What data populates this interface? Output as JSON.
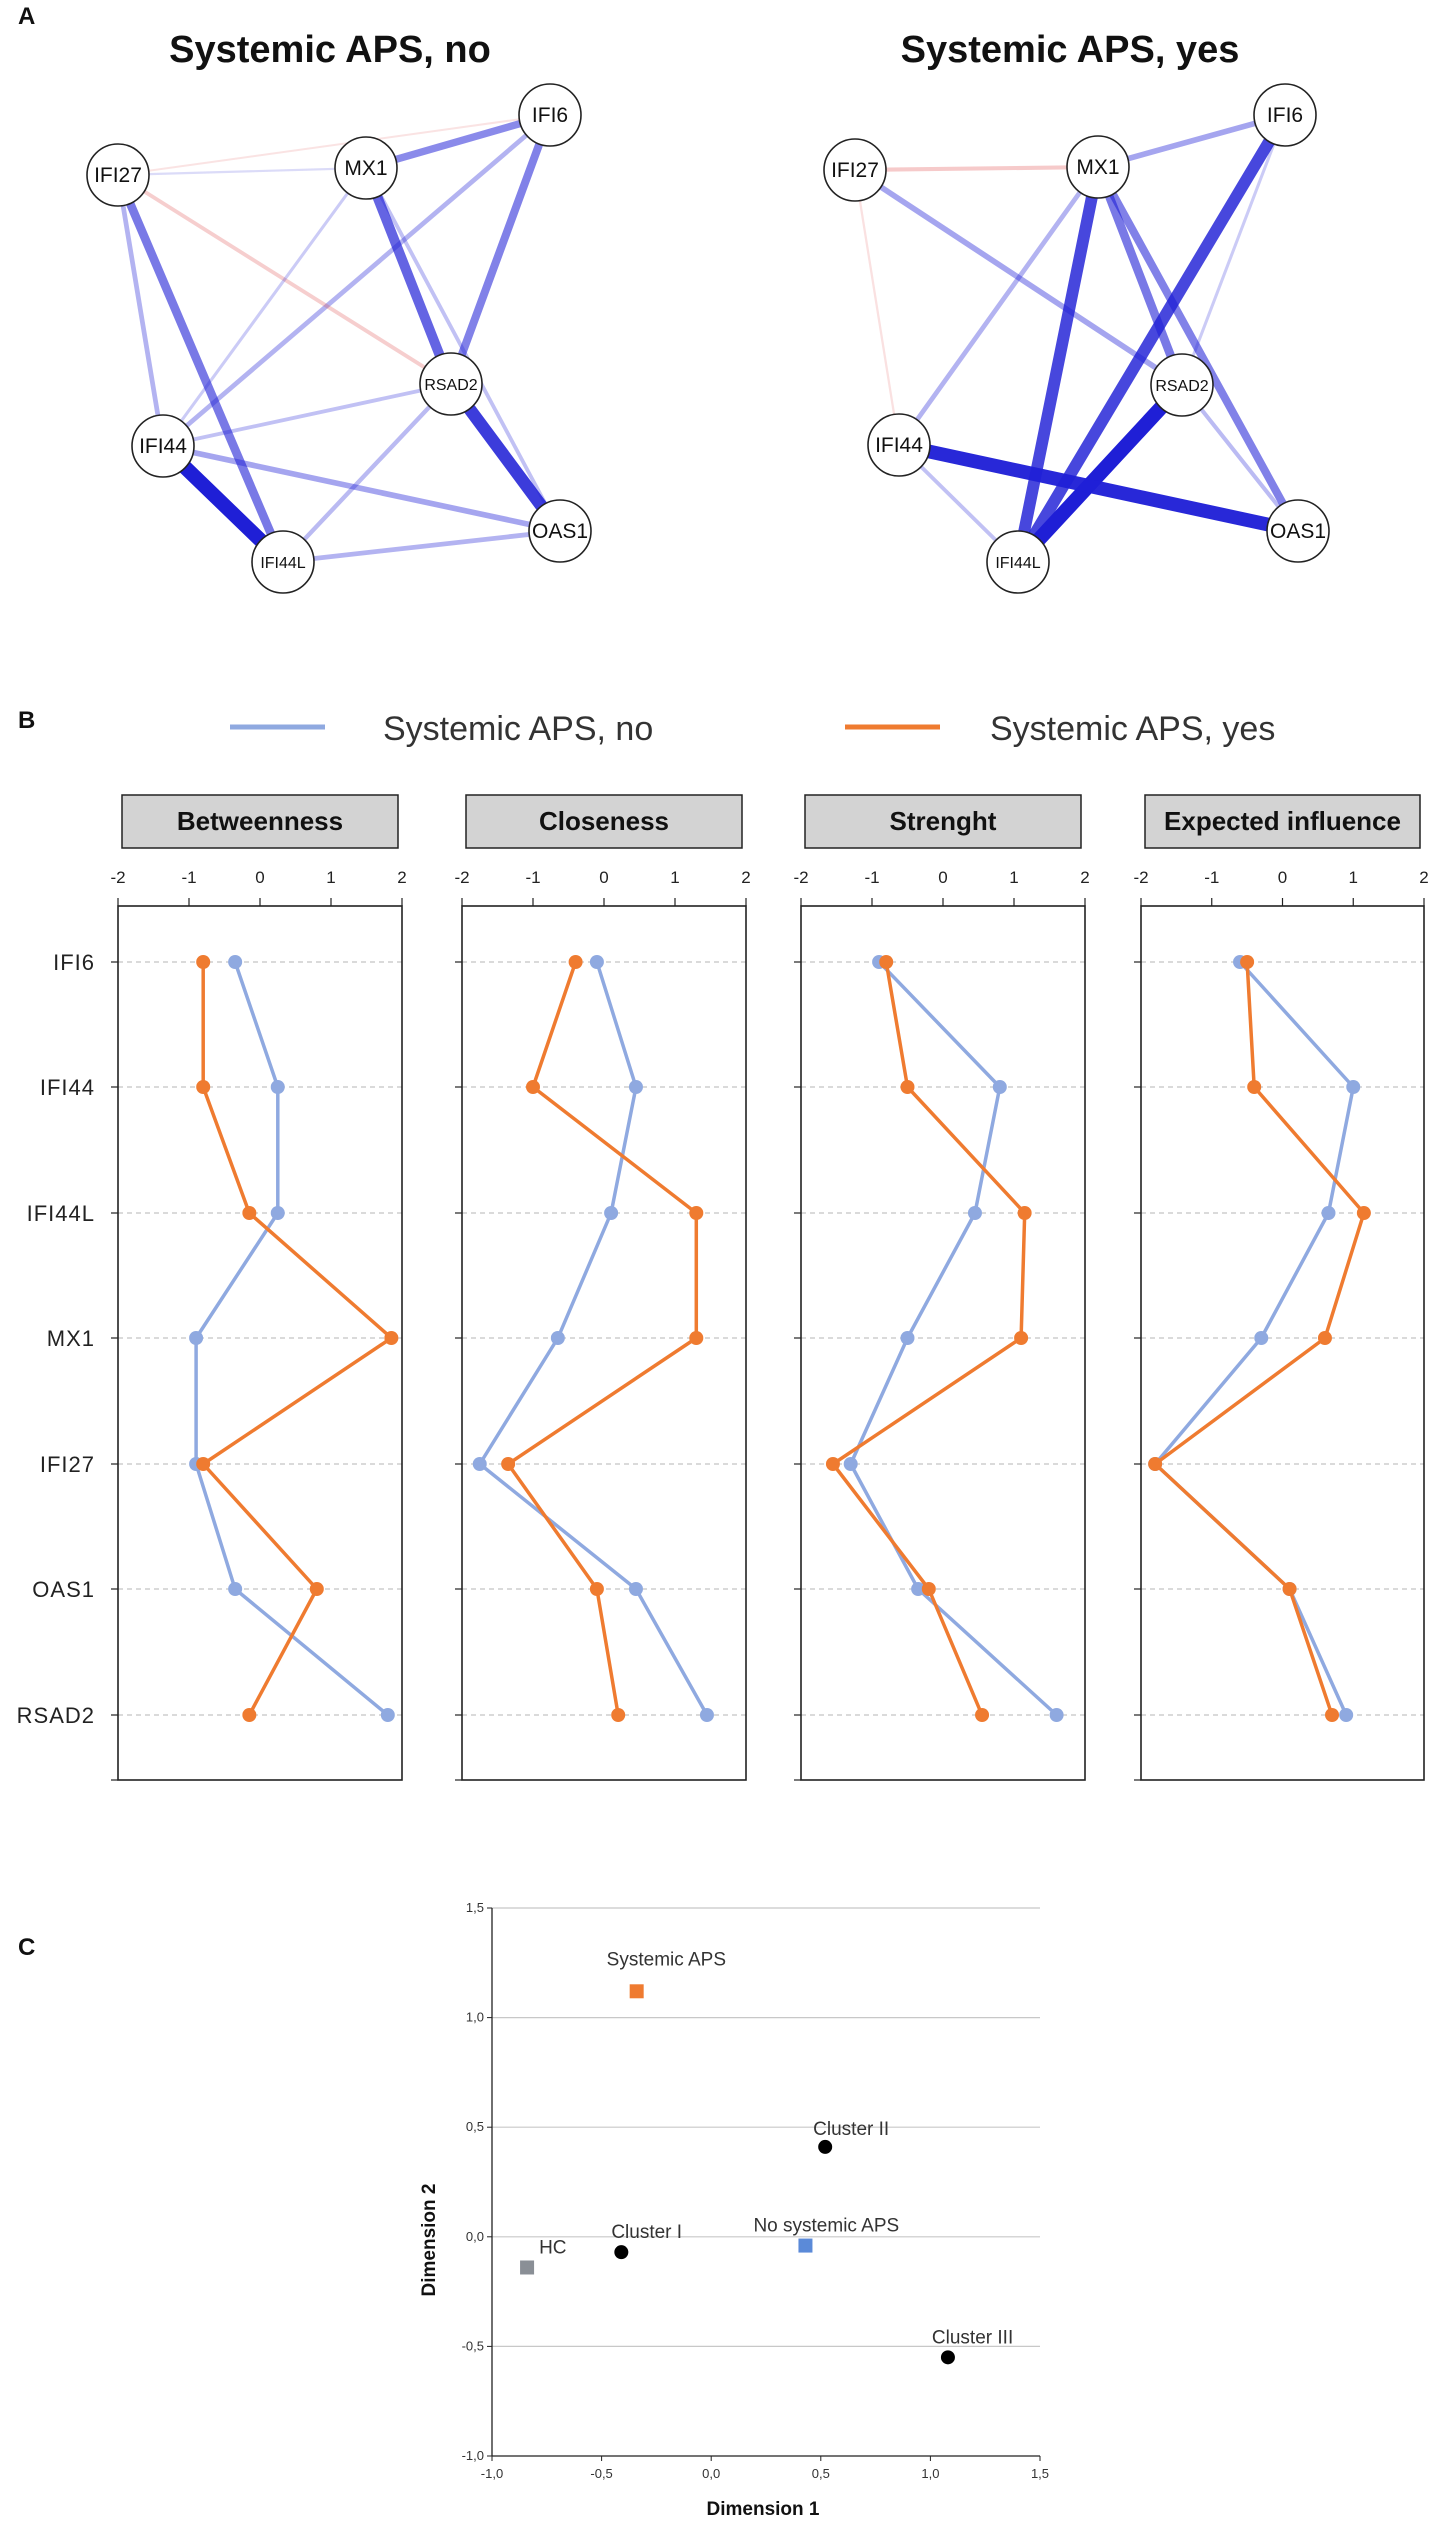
{
  "panel_letters": {
    "a": "A",
    "b": "B",
    "c": "C"
  },
  "colors": {
    "no": "#8fa9e0",
    "yes": "#ef7b30",
    "edge_pos": "#1f1fd6",
    "edge_neg": "#e05050",
    "hc": "#8a8f96",
    "cluster": "#000000",
    "systemic": "#ef7b30",
    "nosystemic": "#5b8ad8"
  },
  "chart_data": [
    {
      "type": "network",
      "title": "Systemic APS, no",
      "nodes": [
        "IFI6",
        "MX1",
        "IFI27",
        "RSAD2",
        "IFI44",
        "OAS1",
        "IFI44L"
      ],
      "edges": [
        {
          "from": "MX1",
          "to": "IFI6",
          "weight": 0.45,
          "sign": "positive"
        },
        {
          "from": "MX1",
          "to": "RSAD2",
          "weight": 0.65,
          "sign": "positive"
        },
        {
          "from": "IFI6",
          "to": "RSAD2",
          "weight": 0.5,
          "sign": "positive"
        },
        {
          "from": "IFI6",
          "to": "IFI44",
          "weight": 0.25,
          "sign": "positive"
        },
        {
          "from": "IFI27",
          "to": "MX1",
          "weight": 0.05,
          "sign": "positive"
        },
        {
          "from": "IFI27",
          "to": "IFI6",
          "weight": 0.04,
          "sign": "negative"
        },
        {
          "from": "IFI27",
          "to": "RSAD2",
          "weight": 0.18,
          "sign": "negative"
        },
        {
          "from": "IFI27",
          "to": "IFI44",
          "weight": 0.25,
          "sign": "positive"
        },
        {
          "from": "IFI27",
          "to": "IFI44L",
          "weight": 0.55,
          "sign": "positive"
        },
        {
          "from": "MX1",
          "to": "IFI44",
          "weight": 0.12,
          "sign": "positive"
        },
        {
          "from": "MX1",
          "to": "OAS1",
          "weight": 0.18,
          "sign": "positive"
        },
        {
          "from": "RSAD2",
          "to": "IFI44",
          "weight": 0.18,
          "sign": "positive"
        },
        {
          "from": "RSAD2",
          "to": "IFI44L",
          "weight": 0.22,
          "sign": "positive"
        },
        {
          "from": "RSAD2",
          "to": "OAS1",
          "weight": 0.85,
          "sign": "positive"
        },
        {
          "from": "IFI44",
          "to": "IFI44L",
          "weight": 1.0,
          "sign": "positive"
        },
        {
          "from": "IFI44",
          "to": "OAS1",
          "weight": 0.32,
          "sign": "positive"
        },
        {
          "from": "IFI44L",
          "to": "OAS1",
          "weight": 0.25,
          "sign": "positive"
        }
      ]
    },
    {
      "type": "network",
      "title": "Systemic APS, yes",
      "nodes": [
        "IFI6",
        "MX1",
        "IFI27",
        "RSAD2",
        "IFI44",
        "OAS1",
        "IFI44L"
      ],
      "edges": [
        {
          "from": "MX1",
          "to": "IFI6",
          "weight": 0.32,
          "sign": "positive"
        },
        {
          "from": "IFI27",
          "to": "MX1",
          "weight": 0.2,
          "sign": "negative"
        },
        {
          "from": "IFI27",
          "to": "RSAD2",
          "weight": 0.32,
          "sign": "positive"
        },
        {
          "from": "IFI27",
          "to": "IFI44",
          "weight": 0.06,
          "sign": "negative"
        },
        {
          "from": "MX1",
          "to": "IFI44",
          "weight": 0.25,
          "sign": "positive"
        },
        {
          "from": "MX1",
          "to": "IFI44L",
          "weight": 0.8,
          "sign": "positive"
        },
        {
          "from": "MX1",
          "to": "RSAD2",
          "weight": 0.55,
          "sign": "positive"
        },
        {
          "from": "MX1",
          "to": "OAS1",
          "weight": 0.5,
          "sign": "positive"
        },
        {
          "from": "IFI6",
          "to": "IFI44L",
          "weight": 0.8,
          "sign": "positive"
        },
        {
          "from": "IFI6",
          "to": "RSAD2",
          "weight": 0.12,
          "sign": "positive"
        },
        {
          "from": "RSAD2",
          "to": "IFI44L",
          "weight": 1.0,
          "sign": "positive"
        },
        {
          "from": "RSAD2",
          "to": "OAS1",
          "weight": 0.2,
          "sign": "positive"
        },
        {
          "from": "IFI44",
          "to": "OAS1",
          "weight": 0.95,
          "sign": "positive"
        },
        {
          "from": "IFI44",
          "to": "IFI44L",
          "weight": 0.18,
          "sign": "positive"
        }
      ]
    },
    {
      "type": "line",
      "orientation": "horizontal-values",
      "legend": [
        "Systemic APS, no",
        "Systemic APS, yes"
      ],
      "categories": [
        "IFI6",
        "IFI44",
        "IFI44L",
        "MX1",
        "IFI27",
        "OAS1",
        "RSAD2"
      ],
      "xlim": [
        -2,
        2
      ],
      "xticks": [
        "-2",
        "-1",
        "0",
        "1",
        "2"
      ],
      "facets": [
        {
          "title": "Betweenness",
          "series": [
            {
              "name": "Systemic APS, no",
              "values": [
                -0.35,
                0.25,
                0.25,
                -0.9,
                -0.9,
                -0.35,
                1.8
              ]
            },
            {
              "name": "Systemic APS, yes",
              "values": [
                -0.8,
                -0.8,
                -0.15,
                1.85,
                -0.8,
                0.8,
                -0.15
              ]
            }
          ]
        },
        {
          "title": "Closeness",
          "series": [
            {
              "name": "Systemic APS, no",
              "values": [
                -0.1,
                0.45,
                0.1,
                -0.65,
                -1.75,
                0.45,
                1.45
              ]
            },
            {
              "name": "Systemic APS, yes",
              "values": [
                -0.4,
                -1.0,
                1.3,
                1.3,
                -1.35,
                -0.1,
                0.2
              ]
            }
          ]
        },
        {
          "title": "Strenght",
          "series": [
            {
              "name": "Systemic APS, no",
              "values": [
                -0.9,
                0.8,
                0.45,
                -0.5,
                -1.3,
                -0.35,
                1.6
              ]
            },
            {
              "name": "Systemic APS, yes",
              "values": [
                -0.8,
                -0.5,
                1.15,
                1.1,
                -1.55,
                -0.2,
                0.55
              ]
            }
          ]
        },
        {
          "title": "Expected influence",
          "series": [
            {
              "name": "Systemic APS, no",
              "values": [
                -0.6,
                1.0,
                0.65,
                -0.3,
                -1.8,
                0.1,
                0.9
              ]
            },
            {
              "name": "Systemic APS, yes",
              "values": [
                -0.5,
                -0.4,
                1.15,
                0.6,
                -1.8,
                0.1,
                0.7
              ]
            }
          ]
        }
      ]
    },
    {
      "type": "scatter",
      "xlabel": "Dimension 1",
      "ylabel": "Dimension 2",
      "xlim": [
        -1.0,
        1.5
      ],
      "ylim": [
        -1.0,
        1.5
      ],
      "xticks": [
        "-1,0",
        "-0,5",
        "0,0",
        "0,5",
        "1,0",
        "1,5"
      ],
      "yticks": [
        "1,5",
        "1,0",
        "0,5",
        "0,0",
        "-0,5",
        "-1,0"
      ],
      "grid": "horizontal",
      "points": [
        {
          "label": "Systemic APS",
          "x": -0.34,
          "y": 1.12,
          "marker": "square",
          "color": "#ef7b30"
        },
        {
          "label": "Cluster II",
          "x": 0.52,
          "y": 0.41,
          "marker": "circle",
          "color": "#000000"
        },
        {
          "label": "No systemic APS",
          "x": 0.43,
          "y": -0.04,
          "marker": "square",
          "color": "#5b8ad8"
        },
        {
          "label": "Cluster I",
          "x": -0.41,
          "y": -0.07,
          "marker": "circle",
          "color": "#000000"
        },
        {
          "label": "HC",
          "x": -0.84,
          "y": -0.14,
          "marker": "square",
          "color": "#8a8f96"
        },
        {
          "label": "Cluster III",
          "x": 1.08,
          "y": -0.55,
          "marker": "circle",
          "color": "#000000"
        }
      ]
    }
  ]
}
